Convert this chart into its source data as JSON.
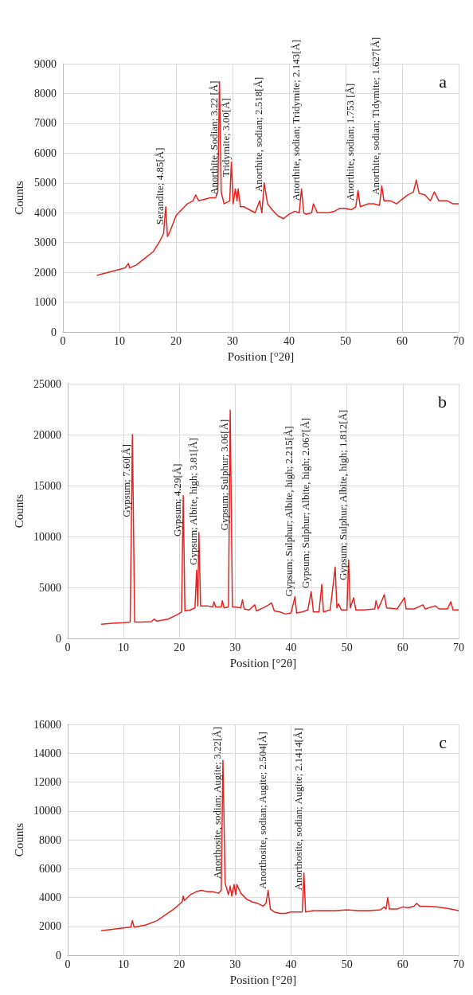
{
  "chart_data": [
    {
      "type": "line",
      "title": "a",
      "xlabel": "Position [°2θ]",
      "ylabel": "Counts",
      "color": "#e8231f",
      "grid": true,
      "xlim": [
        0,
        70
      ],
      "xticks": [
        0,
        10,
        20,
        30,
        40,
        50,
        60,
        70
      ],
      "ylim": [
        0,
        9000
      ],
      "yticks": [
        0,
        1000,
        2000,
        3000,
        4000,
        5000,
        6000,
        7000,
        8000,
        9000
      ],
      "x": [
        6,
        7,
        8,
        9,
        10,
        11,
        11.6,
        11.8,
        13,
        14,
        15,
        16,
        17,
        17.8,
        18.2,
        18.5,
        19,
        20,
        21,
        22,
        23,
        23.5,
        24,
        25,
        26,
        27,
        27.4,
        27.7,
        28,
        28.5,
        29.5,
        29.8,
        30.1,
        30.5,
        30.8,
        31,
        31.4,
        32,
        33,
        34,
        34.8,
        35.2,
        35.6,
        36.2,
        37,
        38,
        39,
        40,
        41,
        41.8,
        42.2,
        42.6,
        43,
        44,
        44.3,
        45,
        46,
        47,
        48,
        49,
        50,
        51,
        51.8,
        52.2,
        52.6,
        54,
        55,
        56,
        56.4,
        56.8,
        58,
        59,
        60,
        61,
        62,
        62.5,
        63,
        64,
        65,
        65.7,
        66.5,
        67,
        68,
        69,
        70
      ],
      "values": [
        1900,
        1950,
        2000,
        2050,
        2100,
        2150,
        2300,
        2150,
        2250,
        2400,
        2550,
        2700,
        3000,
        3300,
        4200,
        3200,
        3400,
        3900,
        4100,
        4300,
        4400,
        4600,
        4400,
        4450,
        4500,
        4500,
        4700,
        8400,
        4700,
        4300,
        4400,
        5700,
        4300,
        4800,
        4400,
        4800,
        4200,
        4200,
        4100,
        4000,
        4400,
        4000,
        5000,
        4300,
        4100,
        3900,
        3800,
        3950,
        4050,
        4000,
        4800,
        4000,
        3950,
        4000,
        4300,
        4000,
        4000,
        4000,
        4050,
        4150,
        4150,
        4100,
        4200,
        4750,
        4200,
        4300,
        4300,
        4250,
        4900,
        4400,
        4400,
        4300,
        4450,
        4600,
        4700,
        5100,
        4650,
        4600,
        4400,
        4700,
        4400,
        4400,
        4400,
        4300,
        4300
      ],
      "annotations": [
        {
          "text": "Serandite; 4.85[Å]",
          "x": 18.2,
          "y": 3600
        },
        {
          "text": "Anorthite, Sodian; 3.22 [Å]",
          "x": 27.7,
          "y": 4600
        },
        {
          "text": "Tridymite; 3.00[Å]",
          "x": 29.8,
          "y": 5200
        },
        {
          "text": "Anorthite, sodian; 2.518[Å]",
          "x": 35.6,
          "y": 4700
        },
        {
          "text": "Anorthite, sodian; Tridymite; 2.143[Å]",
          "x": 42.2,
          "y": 4400
        },
        {
          "text": "Anorthite, sodian; 1.753 [Å]",
          "x": 51.8,
          "y": 4400
        },
        {
          "text": "Anorthite, sodian; Tidymite; 1.627[Å]",
          "x": 56.4,
          "y": 4600
        }
      ]
    },
    {
      "type": "line",
      "title": "b",
      "xlabel": "Position [°2θ]",
      "ylabel": "Counts",
      "color": "#e8231f",
      "grid": true,
      "xlim": [
        0,
        70
      ],
      "xticks": [
        0,
        10,
        20,
        30,
        40,
        50,
        60,
        70
      ],
      "ylim": [
        0,
        25000
      ],
      "yticks": [
        0,
        5000,
        10000,
        15000,
        20000,
        25000
      ],
      "x": [
        6,
        8,
        10,
        11.2,
        11.6,
        12,
        13,
        15,
        15.5,
        16,
        18,
        19.5,
        20.4,
        20.7,
        21,
        22,
        22.8,
        23.1,
        23.3,
        23.5,
        23.8,
        25,
        26,
        26.2,
        26.5,
        27.5,
        27.7,
        28,
        28.8,
        29.1,
        29.5,
        30,
        31,
        31.3,
        31.6,
        32.5,
        33.5,
        33.8,
        35,
        36,
        36.5,
        37,
        38,
        39,
        40,
        40.7,
        41,
        42,
        43,
        43.6,
        44,
        45,
        45.5,
        45.8,
        47,
        47.9,
        48.2,
        48.5,
        49,
        50,
        50.3,
        50.6,
        51.2,
        51.6,
        53,
        55,
        55.2,
        55.6,
        56.7,
        57.1,
        59,
        60.3,
        60.6,
        62,
        63.6,
        64,
        65.8,
        66.5,
        68,
        68.6,
        69,
        70
      ],
      "values": [
        1400,
        1500,
        1550,
        1600,
        20000,
        1600,
        1600,
        1650,
        1900,
        1700,
        1900,
        2300,
        2600,
        14000,
        2700,
        2800,
        3000,
        6700,
        3200,
        10400,
        3200,
        3200,
        3100,
        3600,
        3100,
        3100,
        3700,
        3000,
        3100,
        22400,
        3100,
        3100,
        3000,
        3800,
        2900,
        2800,
        3300,
        2700,
        3000,
        3300,
        3500,
        2700,
        2600,
        2400,
        2500,
        4100,
        2500,
        2600,
        2800,
        4600,
        2600,
        2600,
        5300,
        2600,
        2800,
        7000,
        3000,
        3400,
        2800,
        2800,
        7700,
        3000,
        4000,
        2800,
        2800,
        2900,
        3700,
        2900,
        4300,
        3000,
        2900,
        4000,
        2900,
        2900,
        3300,
        2900,
        3200,
        2900,
        2900,
        3600,
        2800,
        2800
      ],
      "annotations": [
        {
          "text": "Gypsum; 7.60[Å]",
          "x": 11.6,
          "y": 11900
        },
        {
          "text": "Gypsum; 4.29[Å]",
          "x": 20.7,
          "y": 10000
        },
        {
          "text": "Gypsum; Albite, high; 3.81[Å]",
          "x": 23.5,
          "y": 7200
        },
        {
          "text": "Gypsum; Sulphur; 3.06[Å]",
          "x": 29.1,
          "y": 10600
        },
        {
          "text": "Gypsum; Sulphur; Albite, high; 2.215[Å]",
          "x": 40.7,
          "y": 4100
        },
        {
          "text": "Gypsum; Sulphur; Albite, high; 2.067[Å]",
          "x": 43.6,
          "y": 4900
        },
        {
          "text": "Gypsum; Sulphur; Albite, high; 1.812[Å]",
          "x": 50.3,
          "y": 5700
        }
      ]
    },
    {
      "type": "line",
      "title": "c",
      "xlabel": "Position [°2θ]",
      "ylabel": "Counts",
      "color": "#e8231f",
      "grid": true,
      "xlim": [
        0,
        70
      ],
      "xticks": [
        0,
        10,
        20,
        30,
        40,
        50,
        60,
        70
      ],
      "ylim": [
        0,
        16000
      ],
      "yticks": [
        0,
        2000,
        4000,
        6000,
        8000,
        10000,
        12000,
        14000,
        16000
      ],
      "x": [
        6,
        8,
        10,
        11.3,
        11.6,
        11.9,
        14,
        16,
        17.5,
        19,
        20.5,
        20.7,
        20.9,
        22,
        23,
        24,
        25,
        26,
        27,
        27.5,
        27.8,
        28,
        28.2,
        28.8,
        29.1,
        29.4,
        29.8,
        30.1,
        30.3,
        31,
        32,
        33,
        34,
        35,
        35.5,
        35.9,
        36.3,
        37,
        38,
        39,
        40,
        41,
        42,
        42.3,
        42.6,
        44,
        46,
        48,
        50,
        52,
        54,
        56,
        56.7,
        57,
        57.3,
        57.6,
        59,
        60,
        61,
        62,
        62.5,
        63,
        64,
        66,
        68,
        70
      ],
      "values": [
        1700,
        1800,
        1900,
        1950,
        2400,
        1950,
        2100,
        2400,
        2800,
        3200,
        3700,
        4100,
        3800,
        4200,
        4400,
        4500,
        4400,
        4400,
        4300,
        4500,
        13500,
        9300,
        5000,
        4200,
        4800,
        4100,
        4900,
        4200,
        4900,
        4300,
        3900,
        3700,
        3600,
        3400,
        3600,
        4500,
        3200,
        3000,
        2900,
        2900,
        3000,
        3000,
        3000,
        5700,
        3000,
        3100,
        3100,
        3100,
        3150,
        3100,
        3100,
        3150,
        3350,
        3200,
        4000,
        3200,
        3200,
        3350,
        3300,
        3400,
        3600,
        3400,
        3400,
        3350,
        3250,
        3100
      ],
      "annotations": [
        {
          "text": "Anorthosite, sodian; Augite; 3.22[Å]",
          "x": 27.8,
          "y": 5300
        },
        {
          "text": "Anorthosite, sodian; Augite; 2.504[Å]",
          "x": 35.9,
          "y": 4600
        },
        {
          "text": "Anorthosite, sodian; Augite; 2.1414[Å]",
          "x": 42.3,
          "y": 4500
        }
      ]
    }
  ]
}
